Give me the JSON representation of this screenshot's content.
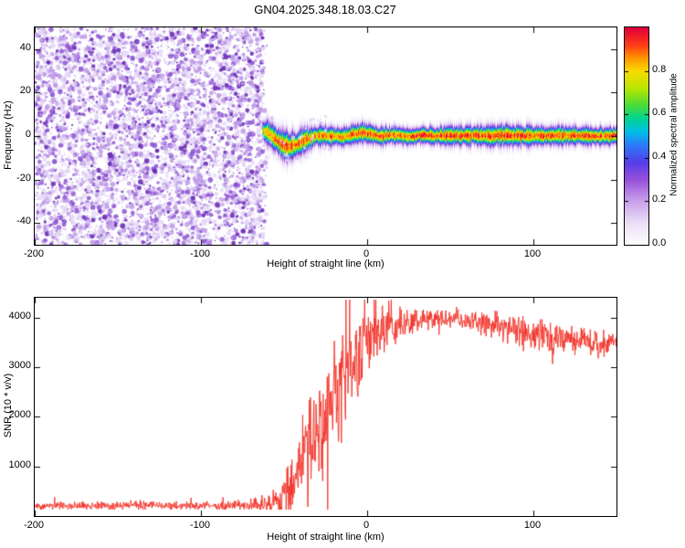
{
  "title": "GN04.2025.348.18.03.C27",
  "chart_data": [
    {
      "type": "heatmap",
      "name": "doppler-spectrogram",
      "xlabel": "Height of straight line (km)",
      "ylabel": "Frequency (Hz)",
      "xlim": [
        -200,
        150
      ],
      "ylim": [
        -50,
        50
      ],
      "xticks": [
        -200,
        -100,
        0,
        100
      ],
      "yticks": [
        -40,
        -20,
        0,
        20,
        40
      ],
      "grid": false,
      "colorbar": {
        "label": "Normalized spectral amplitude",
        "ticks": [
          "0.0",
          "0.2",
          "0.4",
          "0.6",
          "0.8"
        ],
        "tick_values": [
          0,
          0.2,
          0.4,
          0.6,
          0.8
        ],
        "range": [
          0,
          1
        ]
      },
      "noise_region": {
        "x_start": -200,
        "x_end": -62,
        "description": "low-amplitude purple speckle noise filling full frequency range"
      },
      "band_trace": [
        [
          -63,
          2.5
        ],
        [
          -59,
          1.0
        ],
        [
          -55,
          -1.5
        ],
        [
          -51,
          -4.0
        ],
        [
          -47,
          -5.0
        ],
        [
          -43,
          -4.0
        ],
        [
          -39,
          -2.2
        ],
        [
          -35,
          -1.0
        ],
        [
          -31,
          -0.2
        ],
        [
          -26,
          0.4
        ],
        [
          -21,
          0.0
        ],
        [
          -16,
          -0.4
        ],
        [
          -11,
          0.3
        ],
        [
          -6,
          1.2
        ],
        [
          -1,
          1.4
        ],
        [
          4,
          0.6
        ],
        [
          9,
          -0.2
        ],
        [
          14,
          0.6
        ],
        [
          19,
          0.2
        ],
        [
          26,
          -0.2
        ],
        [
          34,
          0.4
        ],
        [
          42,
          0.0
        ],
        [
          50,
          0.3
        ],
        [
          58,
          0.0
        ],
        [
          66,
          0.4
        ],
        [
          74,
          0.1
        ],
        [
          82,
          0.4
        ],
        [
          90,
          0.2
        ],
        [
          98,
          0.0
        ],
        [
          106,
          0.3
        ],
        [
          114,
          0.0
        ],
        [
          122,
          0.2
        ],
        [
          130,
          0.0
        ],
        [
          140,
          0.1
        ],
        [
          150,
          0.0
        ]
      ],
      "band_sigma": [
        [
          -63,
          2.8
        ],
        [
          -56,
          3.5
        ],
        [
          -48,
          3.8
        ],
        [
          -42,
          3.4
        ],
        [
          -36,
          3.0
        ],
        [
          -30,
          2.7
        ],
        [
          -20,
          2.5
        ],
        [
          -10,
          2.4
        ],
        [
          0,
          2.5
        ],
        [
          15,
          2.3
        ],
        [
          30,
          2.2
        ],
        [
          45,
          2.3
        ],
        [
          60,
          2.5
        ],
        [
          75,
          2.6
        ],
        [
          90,
          2.7
        ],
        [
          105,
          2.5
        ],
        [
          120,
          2.4
        ],
        [
          135,
          2.3
        ],
        [
          150,
          2.3
        ]
      ],
      "band_peak": [
        [
          -63,
          0.8
        ],
        [
          -56,
          0.93
        ],
        [
          -48,
          0.96
        ],
        [
          -40,
          0.93
        ],
        [
          -32,
          0.9
        ],
        [
          -24,
          0.93
        ],
        [
          -16,
          0.91
        ],
        [
          -8,
          0.93
        ],
        [
          0,
          0.95
        ],
        [
          8,
          0.92
        ],
        [
          16,
          0.94
        ],
        [
          24,
          0.93
        ],
        [
          32,
          0.96
        ],
        [
          44,
          0.96
        ],
        [
          56,
          0.97
        ],
        [
          68,
          0.97
        ],
        [
          80,
          0.97
        ],
        [
          92,
          0.98
        ],
        [
          104,
          0.96
        ],
        [
          116,
          0.95
        ],
        [
          128,
          0.94
        ],
        [
          140,
          0.95
        ],
        [
          150,
          0.96
        ]
      ]
    },
    {
      "type": "line",
      "name": "snr-profile",
      "xlabel": "Height of straight line (km)",
      "ylabel": "SNR (10 * v/v)",
      "xlim": [
        -200,
        150
      ],
      "ylim": [
        0,
        4400
      ],
      "xticks": [
        -200,
        -100,
        0,
        100
      ],
      "yticks": [
        1000,
        2000,
        3000,
        4000
      ],
      "grid": false,
      "color": "#f23228",
      "mean_envelope": [
        [
          -200,
          205
        ],
        [
          -170,
          205
        ],
        [
          -140,
          210
        ],
        [
          -110,
          210
        ],
        [
          -90,
          212
        ],
        [
          -75,
          215
        ],
        [
          -65,
          225
        ],
        [
          -58,
          260
        ],
        [
          -52,
          380
        ],
        [
          -46,
          620
        ],
        [
          -40,
          1050
        ],
        [
          -35,
          1500
        ],
        [
          -30,
          1750
        ],
        [
          -25,
          1950
        ],
        [
          -20,
          2350
        ],
        [
          -15,
          2750
        ],
        [
          -10,
          3050
        ],
        [
          -5,
          3300
        ],
        [
          0,
          3500
        ],
        [
          5,
          3650
        ],
        [
          10,
          3750
        ],
        [
          15,
          3800
        ],
        [
          20,
          3850
        ],
        [
          25,
          3900
        ],
        [
          30,
          3950
        ],
        [
          40,
          3980
        ],
        [
          50,
          3970
        ],
        [
          60,
          3930
        ],
        [
          70,
          3890
        ],
        [
          80,
          3830
        ],
        [
          90,
          3750
        ],
        [
          100,
          3690
        ],
        [
          110,
          3630
        ],
        [
          120,
          3570
        ],
        [
          130,
          3510
        ],
        [
          140,
          3460
        ],
        [
          150,
          3430
        ]
      ],
      "noise_sd": [
        [
          -200,
          45
        ],
        [
          -150,
          45
        ],
        [
          -100,
          48
        ],
        [
          -75,
          55
        ],
        [
          -65,
          75
        ],
        [
          -58,
          130
        ],
        [
          -52,
          230
        ],
        [
          -46,
          340
        ],
        [
          -40,
          480
        ],
        [
          -35,
          560
        ],
        [
          -30,
          560
        ],
        [
          -25,
          520
        ],
        [
          -20,
          560
        ],
        [
          -15,
          560
        ],
        [
          -10,
          480
        ],
        [
          -5,
          420
        ],
        [
          0,
          340
        ],
        [
          5,
          300
        ],
        [
          10,
          260
        ],
        [
          15,
          230
        ],
        [
          20,
          200
        ],
        [
          30,
          150
        ],
        [
          40,
          120
        ],
        [
          50,
          120
        ],
        [
          60,
          130
        ],
        [
          70,
          140
        ],
        [
          80,
          150
        ],
        [
          90,
          170
        ],
        [
          100,
          170
        ],
        [
          110,
          170
        ],
        [
          120,
          170
        ],
        [
          130,
          160
        ],
        [
          140,
          150
        ],
        [
          150,
          150
        ]
      ]
    }
  ]
}
